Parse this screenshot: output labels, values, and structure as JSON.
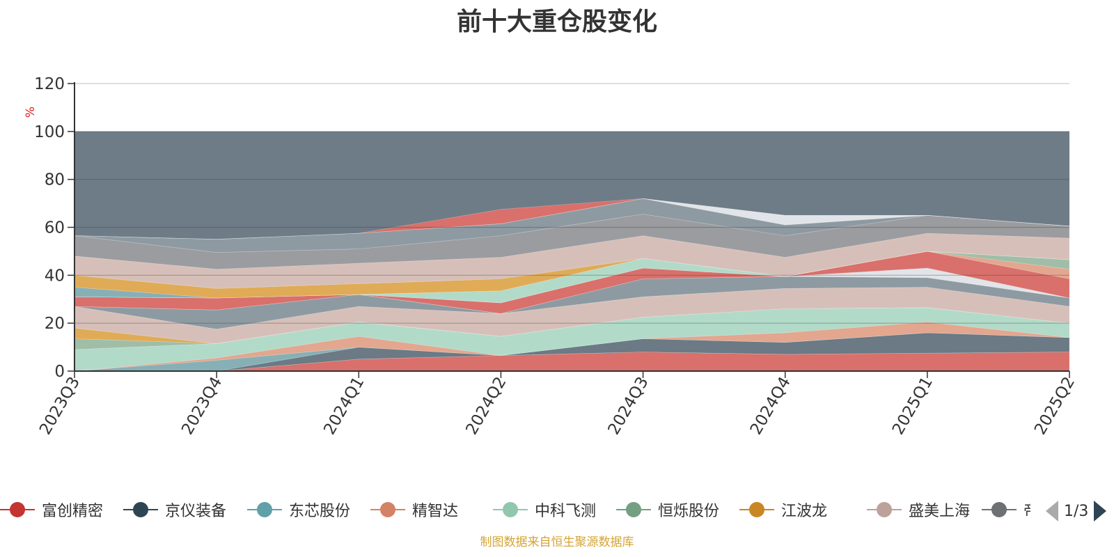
{
  "source_note": "制图数据来自恒生聚源数据库",
  "legend_pager": {
    "label": "1/3"
  },
  "legend_items": [
    {
      "name": "富创精密",
      "color": "#c23531"
    },
    {
      "name": "京仪装备",
      "color": "#2f4554"
    },
    {
      "name": "东芯股份",
      "color": "#61a0a8"
    },
    {
      "name": "精智达",
      "color": "#d48265"
    },
    {
      "name": "中科飞测",
      "color": "#91c7ae"
    },
    {
      "name": "恒烁股份",
      "color": "#749f83"
    },
    {
      "name": "江波龙",
      "color": "#ca8622"
    },
    {
      "name": "盛美上海",
      "color": "#bda29a"
    },
    {
      "name": "帝科股份",
      "color": "#6e7074"
    }
  ],
  "chart_data": {
    "type": "area",
    "stacked": true,
    "title": "前十大重仓股变化",
    "ylabel": "%",
    "ylim": [
      0,
      120
    ],
    "yticks": [
      0,
      20,
      40,
      60,
      80,
      100,
      120
    ],
    "grid": true,
    "legend_position": "bottom",
    "categories": [
      "2023Q3",
      "2023Q4",
      "2024Q1",
      "2024Q2",
      "2024Q3",
      "2024Q4",
      "2025Q1",
      "2025Q2"
    ],
    "background_fill": {
      "value": 100,
      "color": "#6e7c87"
    },
    "series": [
      {
        "name": "富创精密",
        "color": "#d9706b",
        "values": [
          0,
          0,
          5,
          6.5,
          8,
          7,
          7.5,
          8
        ]
      },
      {
        "name": "京仪装备",
        "color": "#6b7a84",
        "values": [
          0,
          0,
          5,
          0,
          5.5,
          5,
          8.5,
          6
        ]
      },
      {
        "name": "东芯股份",
        "color": "#86b0b6",
        "values": [
          0,
          4.5,
          0,
          0,
          0,
          0,
          0,
          0
        ]
      },
      {
        "name": "精智达",
        "color": "#e3a68f",
        "values": [
          0,
          1,
          4.5,
          0,
          0,
          4,
          4.5,
          0
        ]
      },
      {
        "name": "中科飞测",
        "color": "#b2dac8",
        "values": [
          9,
          6,
          6,
          8,
          9,
          10,
          6,
          6
        ]
      },
      {
        "name": "恒烁股份",
        "color": "#a0bea7",
        "values": [
          4.5,
          0,
          0,
          0,
          0,
          0,
          0,
          0
        ]
      },
      {
        "name": "江波龙",
        "color": "#e0ab56",
        "values": [
          4.5,
          0,
          0,
          0,
          0,
          0,
          0,
          0
        ]
      },
      {
        "name": "盛美上海",
        "color": "#d7bfb9",
        "values": [
          9,
          6,
          6.5,
          9.5,
          8.5,
          8.5,
          8.5,
          7
        ]
      },
      {
        "name": "帝科股份",
        "color": "#8e9aa2",
        "values": [
          0,
          8,
          5,
          0,
          7.5,
          5,
          4,
          3.5
        ]
      },
      {
        "name": "",
        "color": "#e1e4e8",
        "values": [
          0,
          0,
          0,
          0,
          0,
          0,
          4,
          0
        ]
      },
      {
        "name": "",
        "color": "#d9706b",
        "values": [
          4,
          5,
          0,
          4.5,
          4.5,
          0,
          7,
          8
        ]
      },
      {
        "name": "",
        "color": "#e3a68f",
        "values": [
          0,
          0,
          0,
          0,
          0,
          0,
          0,
          4
        ]
      },
      {
        "name": "",
        "color": "#a0bea7",
        "values": [
          0,
          0,
          0,
          0,
          0,
          0,
          0,
          4
        ]
      },
      {
        "name": "",
        "color": "#b2dac8",
        "values": [
          0,
          0,
          0,
          5,
          4,
          0,
          0,
          0
        ]
      },
      {
        "name": "",
        "color": "#86b0b6",
        "values": [
          4,
          0,
          0,
          0,
          0,
          0,
          0,
          0
        ]
      },
      {
        "name": "",
        "color": "#e0ab56",
        "values": [
          5,
          4,
          4.5,
          5,
          0,
          0,
          0,
          0
        ]
      },
      {
        "name": "",
        "color": "#d7bfb9",
        "values": [
          8,
          8,
          8.5,
          9,
          9.5,
          8,
          7.5,
          9
        ]
      },
      {
        "name": "",
        "color": "#9b9c9f",
        "values": [
          8.5,
          7,
          6,
          9,
          9,
          9,
          7.5,
          5
        ]
      },
      {
        "name": "",
        "color": "#8e9aa2",
        "values": [
          0,
          5.5,
          6.5,
          5,
          6.5,
          4.5,
          0,
          0
        ]
      },
      {
        "name": "",
        "color": "#e1e4e8",
        "values": [
          0,
          0,
          0,
          0,
          0,
          4,
          0,
          0
        ]
      },
      {
        "name": "",
        "color": "#d9706b",
        "values": [
          0,
          0,
          0,
          6,
          0,
          0,
          0,
          0
        ]
      }
    ]
  }
}
